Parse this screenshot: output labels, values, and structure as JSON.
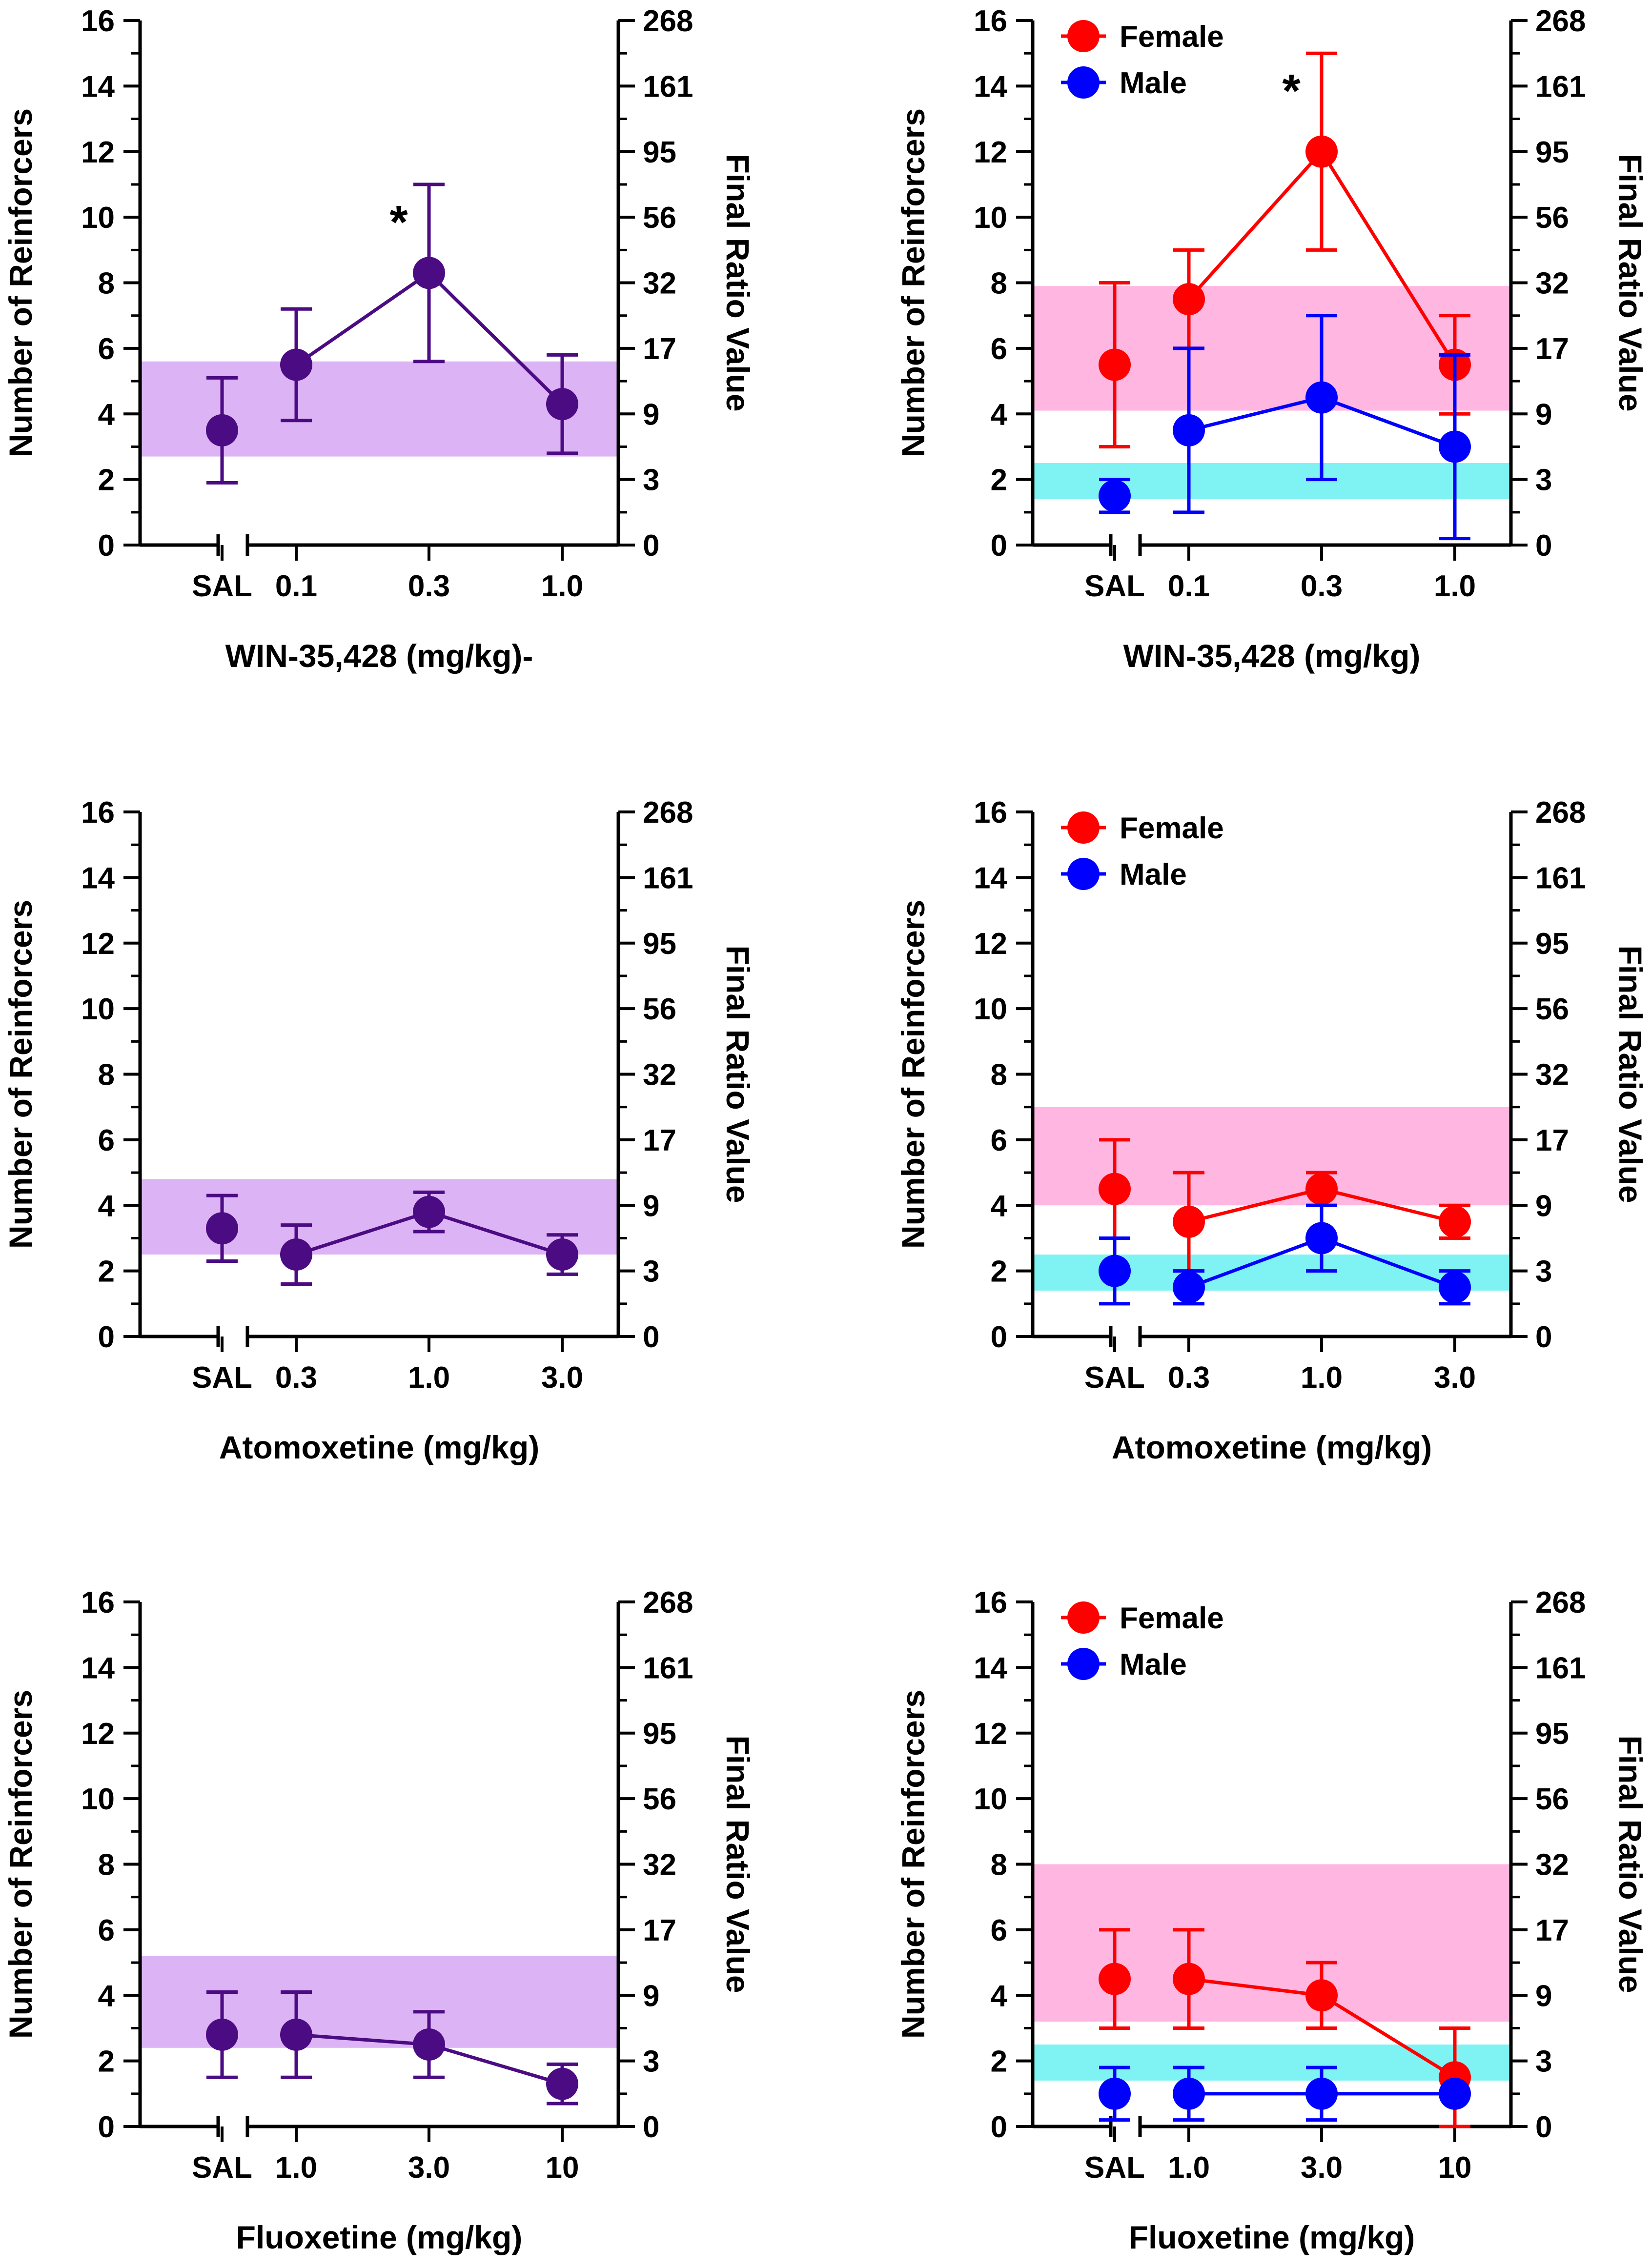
{
  "axes": {
    "y_left_label": "Number of Reinforcers",
    "y_right_label": "Final Ratio Value",
    "y_left_ticks": [
      "0",
      "2",
      "4",
      "6",
      "8",
      "10",
      "12",
      "14",
      "16"
    ],
    "y_right_ticks": [
      "0",
      "3",
      "9",
      "17",
      "32",
      "56",
      "95",
      "161",
      "268"
    ]
  },
  "legend": {
    "female": {
      "label": "Female",
      "color": "#ff0000"
    },
    "male": {
      "label": "Male",
      "color": "#0000ff"
    }
  },
  "colors": {
    "combined": "#4b0b82",
    "combined_band": "#dcb4f5",
    "female_band": "#ffb6e1",
    "male_band": "#7ff3f3"
  },
  "chart_data": [
    {
      "type": "line",
      "panel": "A-combined",
      "xlabel": "WIN-35,428 (mg/kg)-",
      "categories": [
        "SAL",
        "0.1",
        "0.3",
        "1.0"
      ],
      "ylabel": "Number of Reinforcers",
      "ylabel_right": "Final Ratio Value",
      "ylim": [
        0,
        16
      ],
      "band": [
        2.7,
        5.6
      ],
      "series": [
        {
          "name": "All",
          "color": "#4b0b82",
          "values": [
            3.5,
            5.5,
            8.3,
            4.3
          ],
          "err_low": [
            1.9,
            3.8,
            5.6,
            2.8
          ],
          "err_high": [
            5.1,
            7.2,
            11.0,
            5.8
          ]
        }
      ],
      "annotations": [
        {
          "category": "0.3",
          "text": "*",
          "y": 11.0
        }
      ]
    },
    {
      "type": "line",
      "panel": "A-sex",
      "xlabel": "WIN-35,428 (mg/kg)",
      "categories": [
        "SAL",
        "0.1",
        "0.3",
        "1.0"
      ],
      "ylabel": "Number of Reinforcers",
      "ylabel_right": "Final Ratio Value",
      "ylim": [
        0,
        16
      ],
      "bands": {
        "Female": [
          4.1,
          7.9
        ],
        "Male": [
          1.4,
          2.5
        ]
      },
      "series": [
        {
          "name": "Female",
          "color": "#ff0000",
          "values": [
            5.5,
            7.5,
            12.0,
            5.5
          ],
          "err_low": [
            3.0,
            6.0,
            9.0,
            4.0
          ],
          "err_high": [
            8.0,
            9.0,
            15.0,
            7.0
          ]
        },
        {
          "name": "Male",
          "color": "#0000ff",
          "values": [
            1.5,
            3.5,
            4.5,
            3.0
          ],
          "err_low": [
            1.0,
            1.0,
            2.0,
            0.2
          ],
          "err_high": [
            2.0,
            6.0,
            7.0,
            5.8
          ]
        }
      ],
      "annotations": [
        {
          "category": "0.3",
          "text": "*",
          "y": 15.0
        }
      ]
    },
    {
      "type": "line",
      "panel": "B-combined",
      "xlabel": "Atomoxetine (mg/kg)",
      "categories": [
        "SAL",
        "0.3",
        "1.0",
        "3.0"
      ],
      "ylabel": "Number of Reinforcers",
      "ylabel_right": "Final Ratio Value",
      "ylim": [
        0,
        16
      ],
      "band": [
        2.5,
        4.8
      ],
      "series": [
        {
          "name": "All",
          "color": "#4b0b82",
          "values": [
            3.3,
            2.5,
            3.8,
            2.5
          ],
          "err_low": [
            2.3,
            1.6,
            3.2,
            1.9
          ],
          "err_high": [
            4.3,
            3.4,
            4.4,
            3.1
          ]
        }
      ],
      "annotations": []
    },
    {
      "type": "line",
      "panel": "B-sex",
      "xlabel": "Atomoxetine (mg/kg)",
      "categories": [
        "SAL",
        "0.3",
        "1.0",
        "3.0"
      ],
      "ylabel": "Number of Reinforcers",
      "ylabel_right": "Final Ratio Value",
      "ylim": [
        0,
        16
      ],
      "bands": {
        "Female": [
          4.0,
          7.0
        ],
        "Male": [
          1.4,
          2.5
        ]
      },
      "series": [
        {
          "name": "Female",
          "color": "#ff0000",
          "values": [
            4.5,
            3.5,
            4.5,
            3.5
          ],
          "err_low": [
            3.0,
            2.0,
            4.0,
            3.0
          ],
          "err_high": [
            6.0,
            5.0,
            5.0,
            4.0
          ]
        },
        {
          "name": "Male",
          "color": "#0000ff",
          "values": [
            2.0,
            1.5,
            3.0,
            1.5
          ],
          "err_low": [
            1.0,
            1.0,
            2.0,
            1.0
          ],
          "err_high": [
            3.0,
            2.0,
            4.0,
            2.0
          ]
        }
      ],
      "annotations": []
    },
    {
      "type": "line",
      "panel": "C-combined",
      "xlabel": "Fluoxetine (mg/kg)",
      "categories": [
        "SAL",
        "1.0",
        "3.0",
        "10"
      ],
      "ylabel": "Number of Reinforcers",
      "ylabel_right": "Final Ratio Value",
      "ylim": [
        0,
        16
      ],
      "band": [
        2.4,
        5.2
      ],
      "series": [
        {
          "name": "All",
          "color": "#4b0b82",
          "values": [
            2.8,
            2.8,
            2.5,
            1.3
          ],
          "err_low": [
            1.5,
            1.5,
            1.5,
            0.7
          ],
          "err_high": [
            4.1,
            4.1,
            3.5,
            1.9
          ]
        }
      ],
      "annotations": []
    },
    {
      "type": "line",
      "panel": "C-sex",
      "xlabel": "Fluoxetine (mg/kg)",
      "categories": [
        "SAL",
        "1.0",
        "3.0",
        "10"
      ],
      "ylabel": "Number of Reinforcers",
      "ylabel_right": "Final Ratio Value",
      "ylim": [
        0,
        16
      ],
      "bands": {
        "Female": [
          3.2,
          8.0
        ],
        "Male": [
          1.4,
          2.5
        ]
      },
      "series": [
        {
          "name": "Female",
          "color": "#ff0000",
          "values": [
            4.5,
            4.5,
            4.0,
            1.5
          ],
          "err_low": [
            3.0,
            3.0,
            3.0,
            0.0
          ],
          "err_high": [
            6.0,
            6.0,
            5.0,
            3.0
          ]
        },
        {
          "name": "Male",
          "color": "#0000ff",
          "values": [
            1.0,
            1.0,
            1.0,
            1.0
          ],
          "err_low": [
            0.2,
            0.2,
            0.2,
            1.0
          ],
          "err_high": [
            1.8,
            1.8,
            1.8,
            1.0
          ]
        }
      ],
      "annotations": []
    }
  ]
}
